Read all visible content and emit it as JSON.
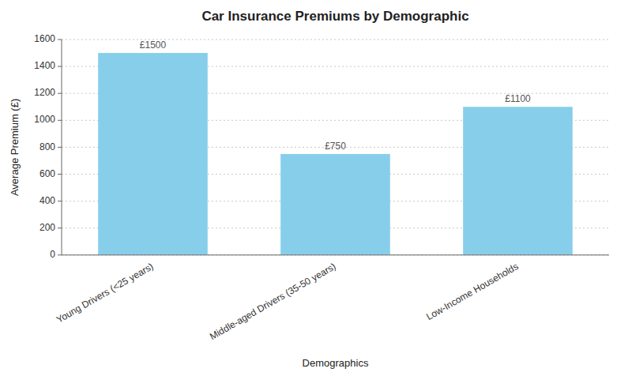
{
  "chart_data": {
    "type": "bar",
    "title": "Car Insurance Premiums by Demographic",
    "xlabel": "Demographics",
    "ylabel": "Average Premium (£)",
    "categories": [
      "Young Drivers (<25 years)",
      "Middle-aged Drivers (35-50 years)",
      "Low-Income Households"
    ],
    "values": [
      1500,
      750,
      1100
    ],
    "value_labels": [
      "£1500",
      "£750",
      "£1100"
    ],
    "data_labels": true,
    "color": "#87CEEB",
    "ylim": [
      0,
      1600
    ],
    "yticks": [
      0,
      200,
      400,
      600,
      800,
      1000,
      1200,
      1400,
      1600
    ],
    "grid": true
  }
}
